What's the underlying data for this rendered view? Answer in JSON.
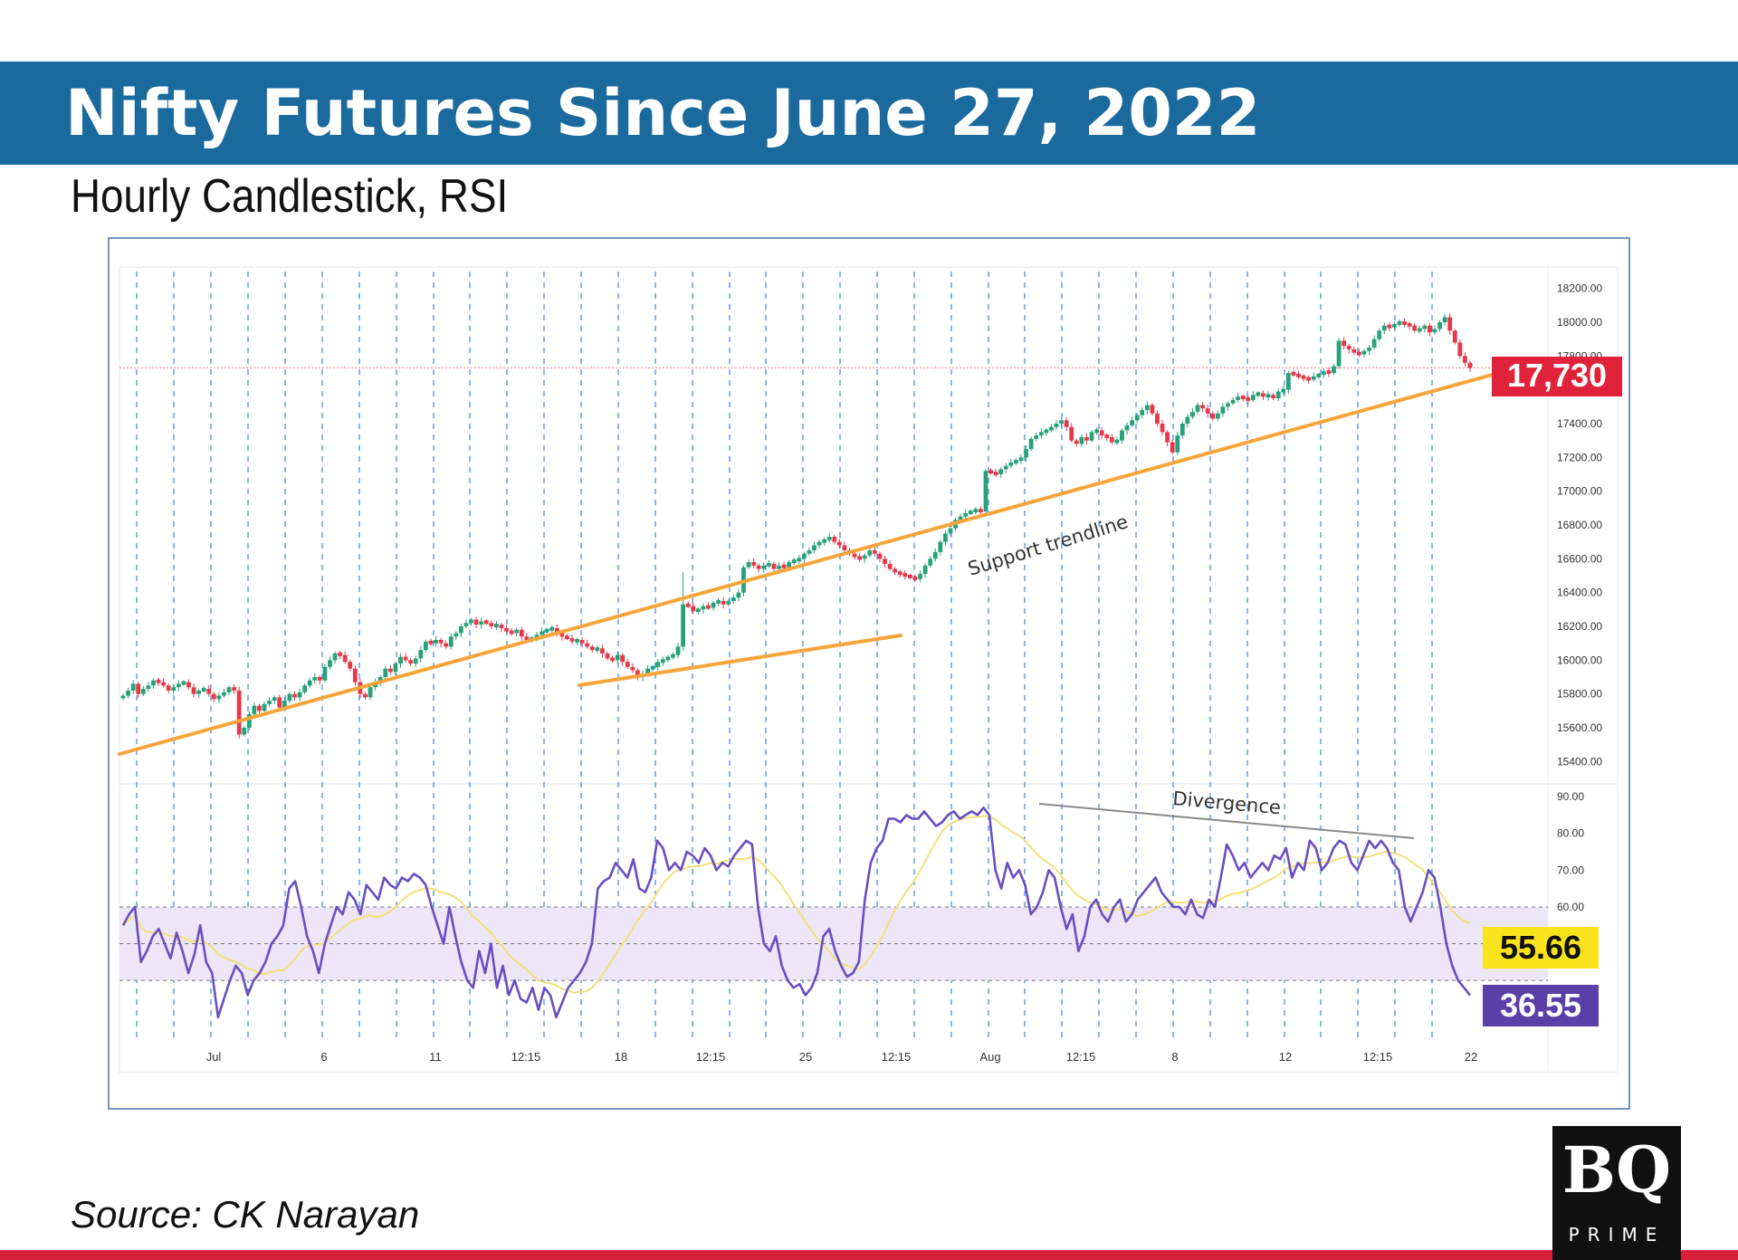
{
  "header": {
    "title": "Nifty Futures Since June 27, 2022",
    "subtitle": "Hourly Candlestick, RSI"
  },
  "footer": {
    "source": "Source: CK Narayan",
    "logo_text": "BQ",
    "logo_sub": "PRIME"
  },
  "colors": {
    "banner": "#1a6a9e",
    "candle_up": "#26a17a",
    "candle_down": "#e8364a",
    "trendline": "#f5a53a",
    "rsi_line": "#6a4fc0",
    "rsi_ma": "#f2e07a",
    "rsi_band": "#ece6f8",
    "price_label_bg": "#e0223a",
    "rsi_ma_label_bg": "#f9e31c",
    "rsi_label_bg": "#5b3fa8",
    "bottom_line": "#d7213a"
  },
  "chart_data": [
    {
      "type": "candlestick",
      "title": "",
      "y_ticks": [
        "18200.00",
        "18000.00",
        "17800.00",
        "17600.00",
        "17400.00",
        "17200.00",
        "17000.00",
        "16800.00",
        "16600.00",
        "16400.00",
        "16200.00",
        "16000.00",
        "15800.00",
        "15600.00",
        "15400.00"
      ],
      "ylim": [
        15300,
        18300
      ],
      "x_ticks": [
        "Jul",
        "6",
        "11",
        "12:15",
        "18",
        "12:15",
        "25",
        "12:15",
        "Aug",
        "12:15",
        "8",
        "12",
        "12:15",
        "22"
      ],
      "series": [
        {
          "kind": "close",
          "values": [
            15790,
            15820,
            15860,
            15800,
            15830,
            15850,
            15880,
            15870,
            15850,
            15820,
            15840,
            15860,
            15870,
            15840,
            15800,
            15820,
            15830,
            15800,
            15770,
            15790,
            15810,
            15840,
            15820,
            15560,
            15600,
            15680,
            15730,
            15700,
            15740,
            15760,
            15780,
            15720,
            15760,
            15800,
            15780,
            15810,
            15850,
            15880,
            15900,
            15880,
            15960,
            16000,
            16040,
            16030,
            15990,
            15950,
            15870,
            15800,
            15780,
            15840,
            15870,
            15900,
            15950,
            15930,
            15980,
            16020,
            16000,
            15980,
            16010,
            16060,
            16110,
            16100,
            16120,
            16100,
            16080,
            16140,
            16160,
            16200,
            16220,
            16240,
            16210,
            16230,
            16220,
            16200,
            16210,
            16190,
            16170,
            16160,
            16180,
            16140,
            16120,
            16130,
            16150,
            16170,
            16180,
            16190,
            16160,
            16140,
            16130,
            16110,
            16120,
            16100,
            16080,
            16060,
            16070,
            16040,
            16010,
            16000,
            16030,
            15990,
            15960,
            15940,
            15900,
            15920,
            15950,
            15960,
            15990,
            16000,
            16020,
            16030,
            16080,
            16330,
            16320,
            16290,
            16300,
            16320,
            16310,
            16340,
            16350,
            16330,
            16350,
            16370,
            16400,
            16550,
            16580,
            16560,
            16540,
            16560,
            16570,
            16540,
            16560,
            16550,
            16580,
            16590,
            16600,
            16630,
            16650,
            16680,
            16700,
            16710,
            16730,
            16700,
            16680,
            16650,
            16630,
            16610,
            16600,
            16620,
            16650,
            16630,
            16600,
            16570,
            16540,
            16520,
            16510,
            16500,
            16490,
            16480,
            16510,
            16560,
            16600,
            16640,
            16700,
            16750,
            16780,
            16830,
            16850,
            16870,
            16880,
            16890,
            16880,
            17120,
            17110,
            17100,
            17130,
            17150,
            17170,
            17180,
            17200,
            17250,
            17310,
            17330,
            17350,
            17360,
            17380,
            17400,
            17420,
            17380,
            17300,
            17280,
            17320,
            17300,
            17350,
            17360,
            17330,
            17320,
            17290,
            17300,
            17360,
            17390,
            17420,
            17450,
            17480,
            17510,
            17460,
            17400,
            17350,
            17290,
            17230,
            17330,
            17400,
            17440,
            17470,
            17510,
            17490,
            17460,
            17430,
            17460,
            17500,
            17520,
            17540,
            17560,
            17550,
            17540,
            17570,
            17580,
            17560,
            17570,
            17550,
            17590,
            17600,
            17700,
            17690,
            17680,
            17670,
            17660,
            17680,
            17690,
            17710,
            17700,
            17740,
            17890,
            17860,
            17840,
            17820,
            17810,
            17830,
            17850,
            17900,
            17950,
            17980,
            17970,
            17990,
            18000,
            17990,
            17980,
            17950,
            17960,
            17980,
            17940,
            17960,
            18000,
            18030,
            17950,
            17880,
            17800,
            17760,
            17730
          ]
        }
      ]
    },
    {
      "type": "line",
      "title": "RSI",
      "y_ticks": [
        "90.00",
        "80.00",
        "70.00",
        "60.00"
      ],
      "ylim": [
        26,
        92
      ],
      "bands": {
        "upper": 60,
        "middle": 50,
        "lower": 40
      },
      "series": [
        {
          "name": "",
          "values": [
            55,
            58,
            60,
            45,
            48,
            52,
            54,
            50,
            46,
            53,
            48,
            42,
            47,
            55,
            45,
            42,
            30,
            35,
            40,
            44,
            42,
            36,
            40,
            42,
            45,
            50,
            52,
            55,
            65,
            67,
            60,
            52,
            48,
            42,
            50,
            55,
            60,
            58,
            64,
            62,
            58,
            66,
            64,
            62,
            68,
            66,
            65,
            68,
            67,
            69,
            68,
            66,
            60,
            55,
            50,
            60,
            52,
            45,
            40,
            38,
            48,
            42,
            50,
            38,
            44,
            36,
            40,
            35,
            34,
            38,
            32,
            38,
            36,
            30,
            34,
            38,
            40,
            42,
            45,
            50,
            65,
            67,
            68,
            72,
            70,
            68,
            73,
            65,
            64,
            68,
            78,
            76,
            70,
            72,
            70,
            75,
            74,
            72,
            76,
            74,
            70,
            72,
            71,
            74,
            76,
            78,
            77,
            60,
            50,
            48,
            52,
            44,
            40,
            38,
            39,
            36,
            38,
            42,
            52,
            54,
            48,
            44,
            41,
            42,
            45,
            62,
            72,
            76,
            78,
            84,
            84,
            83,
            85,
            84,
            84,
            86,
            84,
            82,
            83,
            85,
            86,
            84,
            85,
            86,
            85,
            87,
            85,
            70,
            65,
            72,
            68,
            70,
            66,
            58,
            60,
            64,
            70,
            68,
            60,
            54,
            58,
            48,
            52,
            60,
            62,
            58,
            56,
            60,
            62,
            56,
            58,
            62,
            64,
            66,
            68,
            64,
            62,
            60,
            60,
            58,
            62,
            58,
            57,
            62,
            60,
            68,
            77,
            74,
            70,
            72,
            68,
            70,
            72,
            70,
            74,
            73,
            76,
            68,
            72,
            70,
            78,
            76,
            70,
            72,
            76,
            78,
            77,
            72,
            70,
            74,
            78,
            76,
            78,
            76,
            72,
            70,
            60,
            56,
            60,
            64,
            70,
            68,
            60,
            50,
            44,
            40,
            38,
            36
          ]
        },
        {
          "name": "",
          "values": [
            55.66
          ]
        }
      ],
      "last_value": "36.55",
      "ma_last_value": "55.66"
    }
  ],
  "annotations": {
    "price_label": "17,730",
    "rsi_ma_label": "55.66",
    "rsi_label": "36.55",
    "support_text": "Support trendline",
    "divergence_text": "Divergence"
  }
}
